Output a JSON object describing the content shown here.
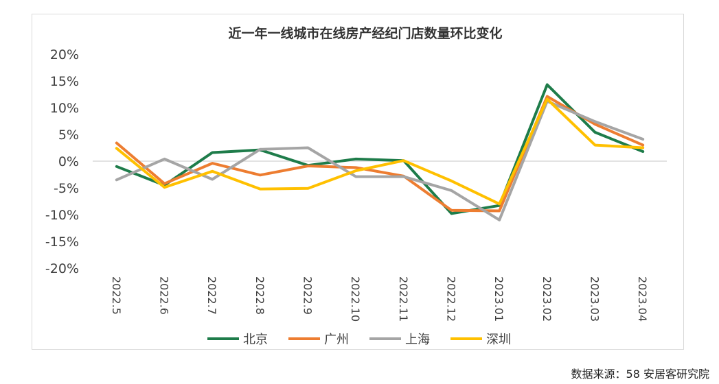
{
  "chart_data": {
    "type": "line",
    "title": "近一年一线城市在线房产经纪门店数量环比变化",
    "xlabel": "",
    "ylabel": "",
    "categories": [
      "2022.5",
      "2022.6",
      "2022.7",
      "2022.8",
      "2022.9",
      "2022.10",
      "2022.11",
      "2022.12",
      "2023.01",
      "2023.02",
      "2023.03",
      "2023.04"
    ],
    "ylim": [
      -20,
      20
    ],
    "yticks": [
      20,
      15,
      10,
      5,
      0,
      -5,
      -10,
      -15,
      -20
    ],
    "ytick_labels": [
      "20%",
      "15%",
      "10%",
      "5%",
      "0%",
      "-5%",
      "-10%",
      "-15%",
      "-20%"
    ],
    "legend_position": "bottom",
    "grid": false,
    "series": [
      {
        "name": "北京",
        "color": "#1e7c4a",
        "values": [
          -1.0,
          -4.5,
          1.6,
          2.1,
          -0.8,
          0.4,
          0.1,
          -9.8,
          -8.3,
          14.3,
          5.4,
          1.8
        ]
      },
      {
        "name": "广州",
        "color": "#ed7d31",
        "values": [
          3.4,
          -4.2,
          -0.4,
          -2.6,
          -0.9,
          -1.2,
          -2.8,
          -9.2,
          -9.3,
          12.1,
          6.9,
          3.0
        ]
      },
      {
        "name": "上海",
        "color": "#a5a5a5",
        "values": [
          -3.5,
          0.4,
          -3.4,
          2.2,
          2.5,
          -2.9,
          -2.9,
          -5.5,
          -11.0,
          11.2,
          7.4,
          4.1
        ]
      },
      {
        "name": "深圳",
        "color": "#ffc000",
        "values": [
          2.4,
          -4.9,
          -1.9,
          -5.2,
          -5.1,
          -1.8,
          0.1,
          -3.7,
          -8.0,
          11.6,
          3.0,
          2.5
        ]
      }
    ]
  },
  "source_note": "数据来源：58 安居客研究院"
}
